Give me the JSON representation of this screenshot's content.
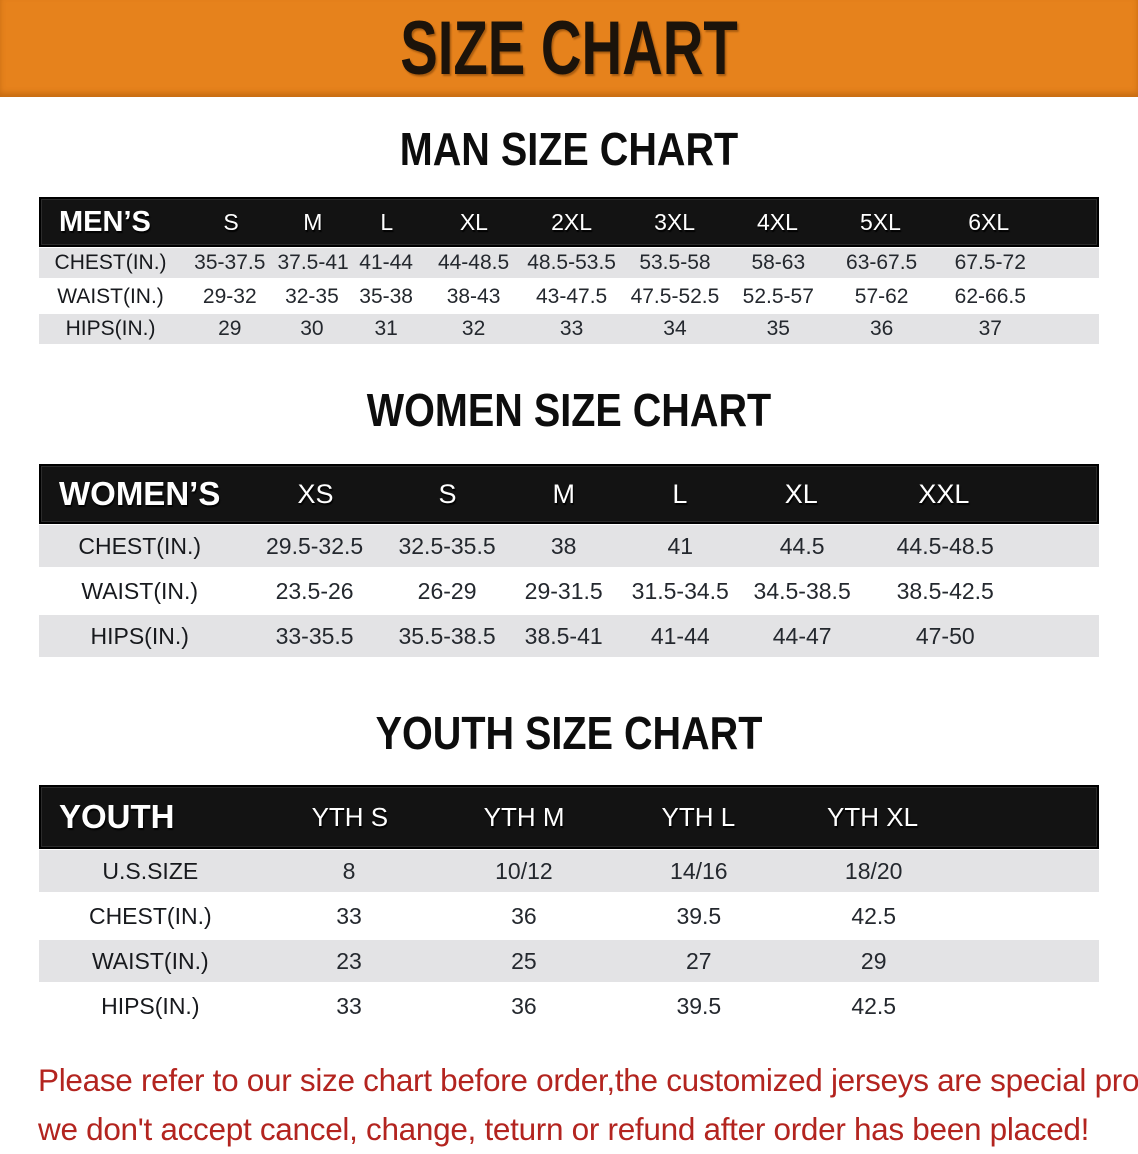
{
  "banner": {
    "title": "SIZE CHART"
  },
  "colors": {
    "banner_orange": "#E6821C",
    "table_header_black": "#131313",
    "row_gray": "#E3E3E5",
    "disclaimer_red": "#B3241F"
  },
  "sections": [
    {
      "heading": "MAN SIZE CHART",
      "header_label": "MEN’S",
      "sizes": [
        "S",
        "M",
        "L",
        "XL",
        "2XL",
        "3XL",
        "4XL",
        "5XL",
        "6XL"
      ],
      "rows": [
        {
          "label": "CHEST(IN.)",
          "values": [
            "35-37.5",
            "37.5-41",
            "41-44",
            "44-48.5",
            "48.5-53.5",
            "53.5-58",
            "58-63",
            "63-67.5",
            "67.5-72"
          ]
        },
        {
          "label": "WAIST(IN.)",
          "values": [
            "29-32",
            "32-35",
            "35-38",
            "38-43",
            "43-47.5",
            "47.5-52.5",
            "52.5-57",
            "57-62",
            "62-66.5"
          ]
        },
        {
          "label": "HIPS(IN.)",
          "values": [
            "29",
            "30",
            "31",
            "32",
            "33",
            "34",
            "35",
            "36",
            "37"
          ]
        }
      ]
    },
    {
      "heading": "WOMEN SIZE CHART",
      "header_label": "WOMEN’S",
      "sizes": [
        "XS",
        "S",
        "M",
        "L",
        "XL",
        "XXL"
      ],
      "rows": [
        {
          "label": "CHEST(IN.)",
          "values": [
            "29.5-32.5",
            "32.5-35.5",
            "38",
            "41",
            "44.5",
            "44.5-48.5"
          ]
        },
        {
          "label": "WAIST(IN.)",
          "values": [
            "23.5-26",
            "26-29",
            "29-31.5",
            "31.5-34.5",
            "34.5-38.5",
            "38.5-42.5"
          ]
        },
        {
          "label": "HIPS(IN.)",
          "values": [
            "33-35.5",
            "35.5-38.5",
            "38.5-41",
            "41-44",
            "44-47",
            "47-50"
          ]
        }
      ]
    },
    {
      "heading": "YOUTH SIZE CHART",
      "header_label": "YOUTH",
      "sizes": [
        "YTH S",
        "YTH M",
        "YTH L",
        "YTH XL"
      ],
      "rows": [
        {
          "label": "U.S.SIZE",
          "values": [
            "8",
            "10/12",
            "14/16",
            "18/20"
          ]
        },
        {
          "label": "CHEST(IN.)",
          "values": [
            "33",
            "36",
            "39.5",
            "42.5"
          ]
        },
        {
          "label": "WAIST(IN.)",
          "values": [
            "23",
            "25",
            "27",
            "29"
          ]
        },
        {
          "label": "HIPS(IN.)",
          "values": [
            "33",
            "36",
            "39.5",
            "42.5"
          ]
        }
      ]
    }
  ],
  "disclaimer": {
    "line1": "Please refer to our size chart before order,the customized jerseys are special products,",
    "line2": "we don't accept cancel, change, teturn or refund after order has been placed!"
  }
}
